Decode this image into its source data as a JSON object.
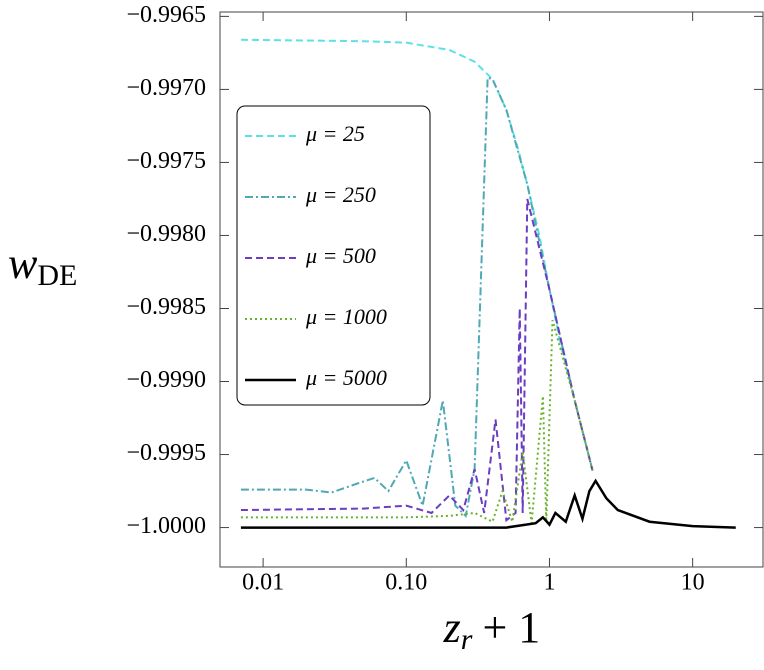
{
  "chart_data": {
    "type": "line",
    "x_label": {
      "main": "z",
      "sub": "r",
      "rest": "+ 1"
    },
    "y_label": {
      "main": "w",
      "sub": "DE"
    },
    "xscale": "log",
    "xlim": [
      0.005,
      31
    ],
    "ylim": [
      -1.00027,
      -0.99647
    ],
    "xticks": [
      0.01,
      {
        "value": 0.1,
        "label": "0.10"
      },
      1,
      10
    ],
    "yticks": [
      {
        "value": -0.9965,
        "label": "−0.9965"
      },
      {
        "value": -0.997,
        "label": "−0.9970"
      },
      {
        "value": -0.9975,
        "label": "−0.9975"
      },
      {
        "value": -0.998,
        "label": "−0.9980"
      },
      {
        "value": -0.9985,
        "label": "−0.9985"
      },
      {
        "value": -0.999,
        "label": "−0.9990"
      },
      {
        "value": -0.9995,
        "label": "−0.9995"
      },
      {
        "value": -1.0,
        "label": "−1.0000"
      }
    ],
    "legend": "upper left",
    "series": [
      {
        "name": "μ = 25",
        "color": "#5ce1e6",
        "style": "dashed",
        "x": [
          0.007,
          0.05,
          0.1,
          0.2,
          0.3,
          0.4,
          0.5,
          0.6,
          0.7,
          0.85,
          1,
          1.2,
          1.5,
          2
        ],
        "values": [
          -0.99666,
          -0.99667,
          -0.99668,
          -0.99673,
          -0.99681,
          -0.99693,
          -0.99714,
          -0.9974,
          -0.99765,
          -0.998,
          -0.99837,
          -0.99875,
          -0.99913,
          -0.99961
        ]
      },
      {
        "name": "μ = 250",
        "color": "#4fa9b5",
        "style": "dashdot",
        "x": [
          0.007,
          0.02,
          0.03,
          0.045,
          0.06,
          0.075,
          0.1,
          0.13,
          0.18,
          0.22,
          0.26,
          0.3,
          0.37,
          0.4,
          0.5,
          0.7,
          1,
          1.5,
          2
        ],
        "values": [
          -0.99974,
          -0.99974,
          -0.99976,
          -0.9997,
          -0.99966,
          -0.99975,
          -0.99954,
          -0.99985,
          -0.99913,
          -0.99985,
          -0.99992,
          -0.9996,
          -0.99692,
          -0.99693,
          -0.99714,
          -0.99765,
          -0.99837,
          -0.99913,
          -0.99961
        ]
      },
      {
        "name": "μ = 500",
        "color": "#6a3dc1",
        "style": "dashed",
        "x": [
          0.007,
          0.05,
          0.1,
          0.15,
          0.2,
          0.25,
          0.3,
          0.35,
          0.42,
          0.5,
          0.58,
          0.62,
          0.65,
          0.7,
          1,
          1.5,
          2
        ],
        "values": [
          -0.99988,
          -0.99987,
          -0.99985,
          -0.9999,
          -0.99978,
          -0.99988,
          -0.9996,
          -0.9999,
          -0.99926,
          -0.99995,
          -0.9999,
          -0.9985,
          -0.9999,
          -0.99775,
          -0.99837,
          -0.99913,
          -0.99961
        ]
      },
      {
        "name": "μ = 1000",
        "color": "#6bb22c",
        "style": "dotted",
        "x": [
          0.007,
          0.1,
          0.2,
          0.3,
          0.4,
          0.47,
          0.55,
          0.65,
          0.75,
          0.9,
          0.95,
          1.05,
          1.5,
          2
        ],
        "values": [
          -0.99993,
          -0.99993,
          -0.99992,
          -0.9999,
          -0.99996,
          -0.99975,
          -0.99996,
          -0.99948,
          -0.99997,
          -0.9991,
          -0.99996,
          -0.99858,
          -0.99913,
          -0.99961
        ]
      },
      {
        "name": "μ = 5000",
        "color": "#000000",
        "style": "solid",
        "x": [
          0.007,
          0.5,
          0.8,
          0.9,
          1.0,
          1.1,
          1.3,
          1.5,
          1.7,
          1.9,
          2.1,
          2.5,
          3,
          5,
          10,
          20
        ],
        "values": [
          -1.0,
          -1.0,
          -0.99997,
          -0.99993,
          -0.99998,
          -0.9999,
          -0.99996,
          -0.99978,
          -0.99994,
          -0.99975,
          -0.99968,
          -0.9998,
          -0.99988,
          -0.99996,
          -0.99999,
          -1.0
        ]
      }
    ]
  }
}
